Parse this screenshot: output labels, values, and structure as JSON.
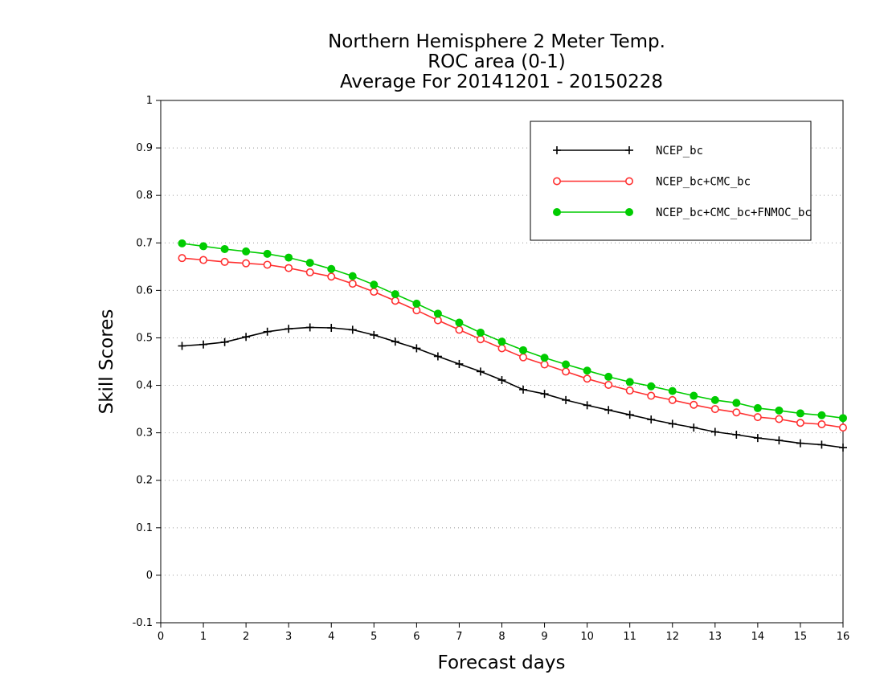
{
  "chart_data": {
    "type": "line",
    "title": [
      "Northern Hemisphere 2 Meter Temp.",
      "ROC area (0-1)",
      "Average For 20141201 - 20150228"
    ],
    "xlabel": "Forecast days",
    "ylabel": "Skill Scores",
    "xlim": [
      0,
      16
    ],
    "ylim": [
      -0.1,
      1
    ],
    "x_ticks": [
      0,
      1,
      2,
      3,
      4,
      5,
      6,
      7,
      8,
      9,
      10,
      11,
      12,
      13,
      14,
      15,
      16
    ],
    "y_ticks": [
      -0.1,
      0,
      0.1,
      0.2,
      0.3,
      0.4,
      0.5,
      0.6,
      0.7,
      0.8,
      0.9,
      1
    ],
    "y_tick_labels": [
      "-0.1",
      "0",
      "0.1",
      "0.2",
      "0.3",
      "0.4",
      "0.5",
      "0.6",
      "0.7",
      "0.8",
      "0.9",
      "1"
    ],
    "grid": "horizontal dotted",
    "legend_position": "top-right",
    "x": [
      0.5,
      1,
      1.5,
      2,
      2.5,
      3,
      3.5,
      4,
      4.5,
      5,
      5.5,
      6,
      6.5,
      7,
      7.5,
      8,
      8.5,
      9,
      9.5,
      10,
      10.5,
      11,
      11.5,
      12,
      12.5,
      13,
      13.5,
      14,
      14.5,
      15,
      15.5,
      16
    ],
    "series": [
      {
        "name": "NCEP_bc",
        "color": "#000000",
        "marker": "plus",
        "values": [
          0.483,
          0.486,
          0.491,
          0.502,
          0.513,
          0.519,
          0.522,
          0.521,
          0.517,
          0.506,
          0.492,
          0.478,
          0.461,
          0.445,
          0.429,
          0.411,
          0.391,
          0.382,
          0.369,
          0.358,
          0.348,
          0.338,
          0.328,
          0.319,
          0.311,
          0.302,
          0.296,
          0.289,
          0.284,
          0.278,
          0.275,
          0.269
        ]
      },
      {
        "name": "NCEP_bc+CMC_bc",
        "color": "#ff3030",
        "marker": "open-circle",
        "values": [
          0.668,
          0.664,
          0.66,
          0.657,
          0.654,
          0.647,
          0.638,
          0.629,
          0.614,
          0.597,
          0.578,
          0.558,
          0.537,
          0.517,
          0.497,
          0.478,
          0.459,
          0.444,
          0.429,
          0.414,
          0.401,
          0.389,
          0.378,
          0.369,
          0.359,
          0.35,
          0.343,
          0.333,
          0.329,
          0.321,
          0.318,
          0.311
        ]
      },
      {
        "name": "NCEP_bc+CMC_bc+FNMOC_bc",
        "color": "#00cc00",
        "marker": "filled-circle",
        "values": [
          0.699,
          0.693,
          0.687,
          0.682,
          0.677,
          0.669,
          0.658,
          0.645,
          0.63,
          0.612,
          0.592,
          0.572,
          0.551,
          0.532,
          0.511,
          0.492,
          0.474,
          0.458,
          0.444,
          0.431,
          0.418,
          0.407,
          0.398,
          0.388,
          0.378,
          0.369,
          0.363,
          0.352,
          0.347,
          0.341,
          0.337,
          0.331
        ]
      }
    ]
  }
}
